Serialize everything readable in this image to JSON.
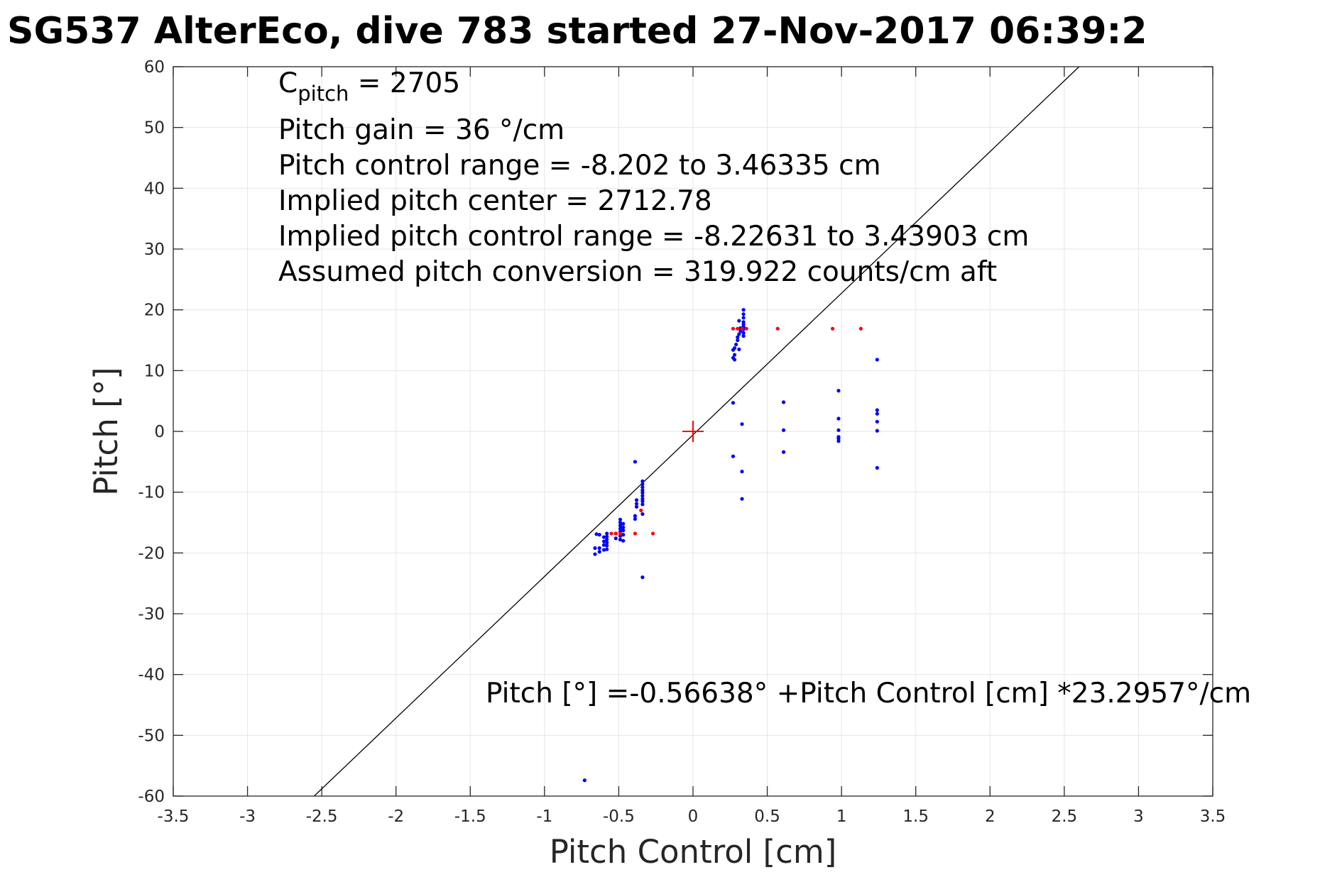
{
  "chart_data": {
    "type": "scatter",
    "title": "SG537 AlterEco, dive 783 started 27-Nov-2017 06:39:2",
    "xlabel": "Pitch Control [cm]",
    "ylabel": "Pitch [°]",
    "xlim": [
      -3.5,
      3.5
    ],
    "ylim": [
      -60,
      60
    ],
    "xticks": [
      -3.5,
      -3,
      -2.5,
      -2,
      -1.5,
      -1,
      -0.5,
      0,
      0.5,
      1,
      1.5,
      2,
      2.5,
      3,
      3.5
    ],
    "yticks": [
      -60,
      -50,
      -40,
      -30,
      -20,
      -10,
      0,
      10,
      20,
      30,
      40,
      50,
      60
    ],
    "xtick_labels": [
      "-3.5",
      "-3",
      "-2.5",
      "-2",
      "-1.5",
      "-1",
      "-0.5",
      "0",
      "0.5",
      "1",
      "1.5",
      "2",
      "2.5",
      "3",
      "3.5"
    ],
    "ytick_labels": [
      "-60",
      "-50",
      "-40",
      "-30",
      "-20",
      "-10",
      "0",
      "10",
      "20",
      "30",
      "40",
      "50",
      "60"
    ],
    "grid": true,
    "colors": {
      "blue_points": "#0000ff",
      "red_points": "#ff0000",
      "fit_line": "#000000",
      "center_marker": "#ff0000",
      "grid": "#e6e6e6"
    },
    "fit_line": {
      "intercept": -0.56638,
      "slope": 23.2957
    },
    "center_marker": {
      "x": 0,
      "y": 0
    },
    "annotations": {
      "c_pitch_main": "C",
      "c_pitch_sub": "pitch",
      "c_pitch_value": " = 2705",
      "lines": [
        "Pitch gain = 36 °/cm",
        "Pitch control range = -8.202 to 3.46335 cm",
        "Implied pitch center = 2712.78",
        "Implied pitch control range = -8.22631 to 3.43903 cm",
        "Assumed pitch conversion = 319.922 counts/cm aft"
      ],
      "fit_equation": "Pitch [°] =-0.56638° +Pitch Control [cm] *23.2957°/cm"
    },
    "series": [
      {
        "color": "blue",
        "points": [
          [
            0.34,
            20.0
          ],
          [
            0.34,
            19.3
          ],
          [
            0.34,
            18.7
          ],
          [
            0.34,
            18.0
          ],
          [
            0.34,
            17.6
          ],
          [
            0.34,
            17.2
          ],
          [
            0.34,
            16.8
          ],
          [
            0.34,
            16.2
          ],
          [
            0.34,
            15.7
          ],
          [
            0.31,
            18.2
          ],
          [
            0.32,
            17.0
          ],
          [
            0.32,
            16.5
          ],
          [
            0.31,
            16.0
          ],
          [
            0.3,
            15.5
          ],
          [
            0.3,
            15.0
          ],
          [
            0.29,
            14.3
          ],
          [
            0.28,
            13.7
          ],
          [
            0.27,
            13.4
          ],
          [
            0.31,
            13.5
          ],
          [
            0.28,
            12.6
          ],
          [
            0.27,
            12.1
          ],
          [
            0.28,
            11.8
          ],
          [
            0.27,
            4.7
          ],
          [
            0.33,
            1.2
          ],
          [
            0.27,
            -4.1
          ],
          [
            0.33,
            -6.6
          ],
          [
            0.33,
            -11.1
          ],
          [
            0.61,
            4.8
          ],
          [
            0.61,
            0.2
          ],
          [
            0.61,
            -3.4
          ],
          [
            0.98,
            6.7
          ],
          [
            0.98,
            2.1
          ],
          [
            0.98,
            0.2
          ],
          [
            0.98,
            -0.9
          ],
          [
            0.98,
            -1.2
          ],
          [
            0.98,
            -1.6
          ],
          [
            1.24,
            11.8
          ],
          [
            1.24,
            3.5
          ],
          [
            1.24,
            2.9
          ],
          [
            1.24,
            1.6
          ],
          [
            1.24,
            0.1
          ],
          [
            1.24,
            -6.0
          ],
          [
            -0.39,
            -5.0
          ],
          [
            -0.34,
            -8.2
          ],
          [
            -0.34,
            -8.7
          ],
          [
            -0.34,
            -9.2
          ],
          [
            -0.34,
            -9.7
          ],
          [
            -0.34,
            -10.1
          ],
          [
            -0.34,
            -10.6
          ],
          [
            -0.34,
            -11.1
          ],
          [
            -0.34,
            -11.5
          ],
          [
            -0.34,
            -12.0
          ],
          [
            -0.34,
            -13.6
          ],
          [
            -0.38,
            -11.3
          ],
          [
            -0.38,
            -11.9
          ],
          [
            -0.38,
            -12.4
          ],
          [
            -0.39,
            -13.9
          ],
          [
            -0.39,
            -14.4
          ],
          [
            -0.49,
            -14.5
          ],
          [
            -0.49,
            -15.0
          ],
          [
            -0.49,
            -15.5
          ],
          [
            -0.49,
            -16.0
          ],
          [
            -0.49,
            -16.5
          ],
          [
            -0.49,
            -17.2
          ],
          [
            -0.49,
            -17.8
          ],
          [
            -0.47,
            -15.2
          ],
          [
            -0.47,
            -15.8
          ],
          [
            -0.47,
            -16.3
          ],
          [
            -0.47,
            -17.0
          ],
          [
            -0.47,
            -18.0
          ],
          [
            -0.52,
            -16.8
          ],
          [
            -0.52,
            -17.6
          ],
          [
            -0.58,
            -16.8
          ],
          [
            -0.58,
            -17.3
          ],
          [
            -0.58,
            -17.8
          ],
          [
            -0.58,
            -18.3
          ],
          [
            -0.58,
            -18.8
          ],
          [
            -0.58,
            -19.4
          ],
          [
            -0.6,
            -17.4
          ],
          [
            -0.6,
            -18.1
          ],
          [
            -0.6,
            -18.7
          ],
          [
            -0.6,
            -19.5
          ],
          [
            -0.63,
            -17.0
          ],
          [
            -0.63,
            -19.2
          ],
          [
            -0.63,
            -19.8
          ],
          [
            -0.65,
            -16.9
          ],
          [
            -0.66,
            -19.2
          ],
          [
            -0.66,
            -20.2
          ],
          [
            -0.34,
            -24.0
          ],
          [
            -0.73,
            -57.4
          ]
        ]
      },
      {
        "color": "red",
        "points": [
          [
            0.27,
            16.9
          ],
          [
            0.3,
            16.9
          ],
          [
            0.33,
            16.9
          ],
          [
            0.36,
            16.9
          ],
          [
            0.57,
            16.9
          ],
          [
            0.94,
            16.9
          ],
          [
            1.13,
            16.9
          ],
          [
            -0.52,
            -16.8
          ],
          [
            -0.55,
            -16.8
          ],
          [
            -0.49,
            -16.8
          ],
          [
            -0.39,
            -16.8
          ],
          [
            -0.27,
            -16.8
          ],
          [
            -0.35,
            -13.0
          ]
        ]
      }
    ]
  }
}
